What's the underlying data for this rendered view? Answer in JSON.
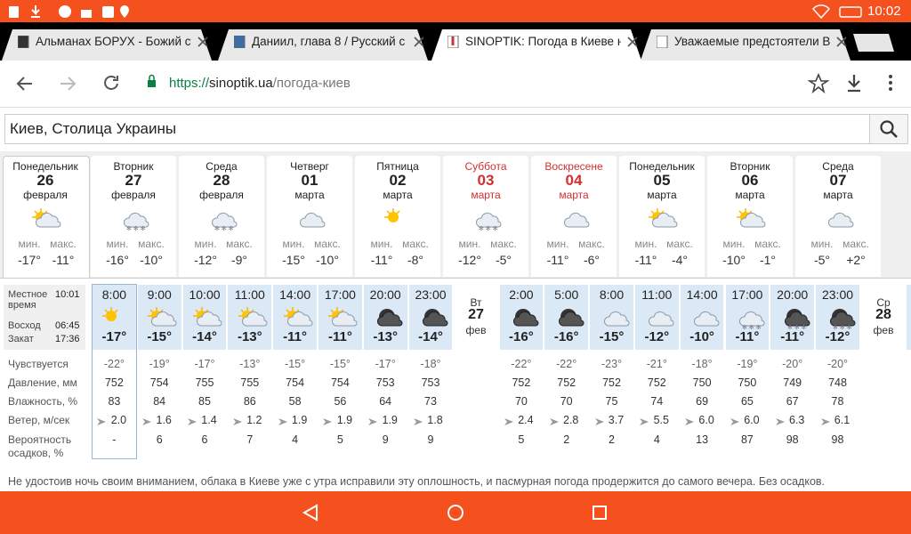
{
  "status_bar": {
    "time": "10:02"
  },
  "tabs": [
    {
      "title": "Альманах БОРУХ - Божий су"
    },
    {
      "title": "Даниил, глава 8 / Русский с"
    },
    {
      "title": "SINOPTIK: Погода в Киеве н"
    },
    {
      "title": "Уважаемые предстоятели В"
    }
  ],
  "address_bar": {
    "scheme": "https://",
    "host": "sinoptik.ua",
    "path": "/погода-киев"
  },
  "search": {
    "value": "Киев, Столица Украины"
  },
  "days_labels": {
    "min": "мин.",
    "max": "макс."
  },
  "days": [
    {
      "weekday": "Понедельник",
      "date": "26",
      "month": "февраля",
      "min": "-17°",
      "max": "-11°"
    },
    {
      "weekday": "Вторник",
      "date": "27",
      "month": "февраля",
      "min": "-16°",
      "max": "-10°"
    },
    {
      "weekday": "Среда",
      "date": "28",
      "month": "февраля",
      "min": "-12°",
      "max": "-9°"
    },
    {
      "weekday": "Четверг",
      "date": "01",
      "month": "марта",
      "min": "-15°",
      "max": "-10°"
    },
    {
      "weekday": "Пятница",
      "date": "02",
      "month": "марта",
      "min": "-11°",
      "max": "-8°"
    },
    {
      "weekday": "Суббота",
      "date": "03",
      "month": "марта",
      "min": "-12°",
      "max": "-5°"
    },
    {
      "weekday": "Воскресене",
      "date": "04",
      "month": "марта",
      "min": "-11°",
      "max": "-6°"
    },
    {
      "weekday": "Понедельник",
      "date": "05",
      "month": "марта",
      "min": "-11°",
      "max": "-4°"
    },
    {
      "weekday": "Вторник",
      "date": "06",
      "month": "марта",
      "min": "-10°",
      "max": "-1°"
    },
    {
      "weekday": "Среда",
      "date": "07",
      "month": "марта",
      "min": "-5°",
      "max": "+2°"
    }
  ],
  "hourly": {
    "info": {
      "local_time_label": "Местное время",
      "local_time": "10:01",
      "sunrise_label": "Восход",
      "sunrise": "06:45",
      "sunset_label": "Закат",
      "sunset": "17:36"
    },
    "row_labels": [
      "Чувствуется",
      "Давление, мм",
      "Влажность, %",
      "Ветер, м/сек",
      "Вероятность осадков, %"
    ],
    "groups": [
      {
        "columns": [
          {
            "time": "8:00",
            "temp": "-17°",
            "feels": "-22°",
            "pressure": "752",
            "humidity": "83",
            "wind": "2.0",
            "precip": "-"
          },
          {
            "time": "9:00",
            "temp": "-15°",
            "feels": "-19°",
            "pressure": "754",
            "humidity": "84",
            "wind": "1.6",
            "precip": "6"
          },
          {
            "time": "10:00",
            "temp": "-14°",
            "feels": "-17°",
            "pressure": "755",
            "humidity": "85",
            "wind": "1.4",
            "precip": "6"
          },
          {
            "time": "11:00",
            "temp": "-13°",
            "feels": "-13°",
            "pressure": "755",
            "humidity": "86",
            "wind": "1.2",
            "precip": "7"
          },
          {
            "time": "14:00",
            "temp": "-11°",
            "feels": "-15°",
            "pressure": "754",
            "humidity": "58",
            "wind": "1.9",
            "precip": "4"
          },
          {
            "time": "17:00",
            "temp": "-11°",
            "feels": "-15°",
            "pressure": "754",
            "humidity": "56",
            "wind": "1.9",
            "precip": "5"
          },
          {
            "time": "20:00",
            "temp": "-13°",
            "feels": "-17°",
            "pressure": "753",
            "humidity": "64",
            "wind": "1.9",
            "precip": "9"
          },
          {
            "time": "23:00",
            "temp": "-14°",
            "feels": "-18°",
            "pressure": "753",
            "humidity": "73",
            "wind": "1.8",
            "precip": "9"
          }
        ]
      },
      {
        "columns": [
          {
            "time": "2:00",
            "temp": "-16°",
            "feels": "-22°",
            "pressure": "752",
            "humidity": "70",
            "wind": "2.4",
            "precip": "5"
          },
          {
            "time": "5:00",
            "temp": "-16°",
            "feels": "-22°",
            "pressure": "752",
            "humidity": "70",
            "wind": "2.8",
            "precip": "2"
          },
          {
            "time": "8:00",
            "temp": "-15°",
            "feels": "-23°",
            "pressure": "752",
            "humidity": "75",
            "wind": "3.7",
            "precip": "2"
          },
          {
            "time": "11:00",
            "temp": "-12°",
            "feels": "-21°",
            "pressure": "752",
            "humidity": "74",
            "wind": "5.5",
            "precip": "4"
          },
          {
            "time": "14:00",
            "temp": "-10°",
            "feels": "-18°",
            "pressure": "750",
            "humidity": "69",
            "wind": "6.0",
            "precip": "13"
          },
          {
            "time": "17:00",
            "temp": "-11°",
            "feels": "-19°",
            "pressure": "750",
            "humidity": "65",
            "wind": "6.0",
            "precip": "87"
          },
          {
            "time": "20:00",
            "temp": "-11°",
            "feels": "-20°",
            "pressure": "749",
            "humidity": "67",
            "wind": "6.3",
            "precip": "98"
          },
          {
            "time": "23:00",
            "temp": "-12°",
            "feels": "-20°",
            "pressure": "748",
            "humidity": "78",
            "wind": "6.1",
            "precip": "98"
          }
        ]
      }
    ],
    "separators": [
      {
        "weekday": "Вт",
        "date": "27",
        "month": "фев"
      },
      {
        "weekday": "Ср",
        "date": "28",
        "month": "фев"
      }
    ]
  },
  "note": "Не удостоив ночь своим вниманием, облака в Киеве уже с утра исправили эту оплошность, и пасмурная погода продержится до самого вечера. Без осадков."
}
